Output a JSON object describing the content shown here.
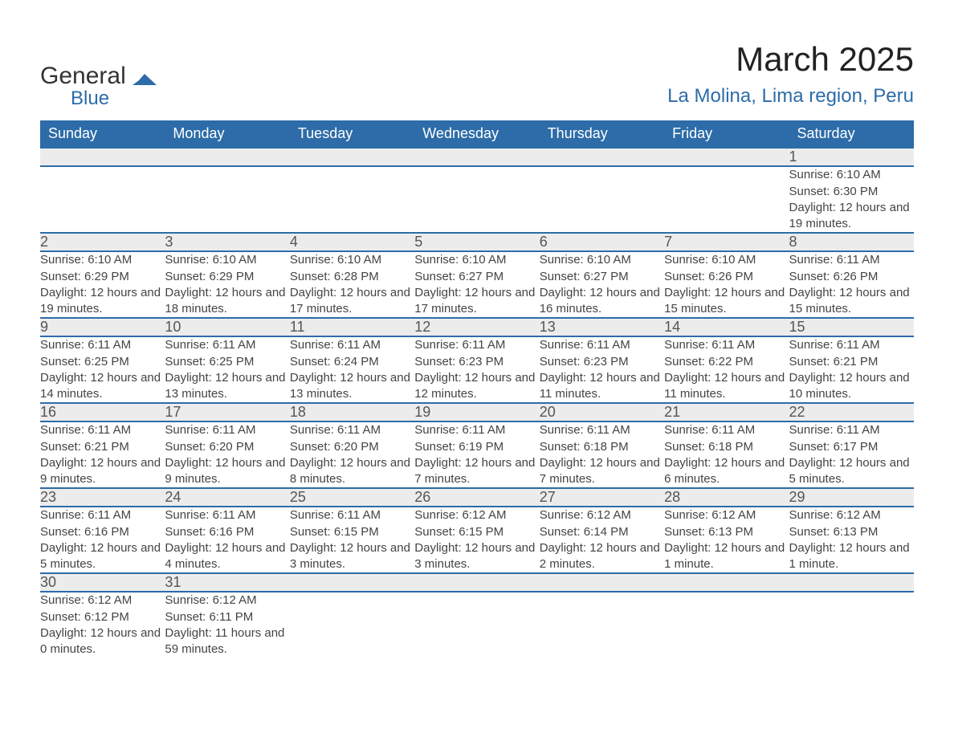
{
  "logo": {
    "word1": "General",
    "word2": "Blue",
    "accent_color": "#2d6ca8"
  },
  "title": "March 2025",
  "location": "La Molina, Lima region, Peru",
  "header_bg": "#2d6ca8",
  "header_fg": "#ffffff",
  "daynum_bg": "#ececec",
  "row_divider": "#2d6ca8",
  "text_color": "#444444",
  "weekdays": [
    "Sunday",
    "Monday",
    "Tuesday",
    "Wednesday",
    "Thursday",
    "Friday",
    "Saturday"
  ],
  "weeks": [
    [
      null,
      null,
      null,
      null,
      null,
      null,
      {
        "n": "1",
        "sr": "6:10 AM",
        "ss": "6:30 PM",
        "dl": "12 hours and 19 minutes."
      }
    ],
    [
      {
        "n": "2",
        "sr": "6:10 AM",
        "ss": "6:29 PM",
        "dl": "12 hours and 19 minutes."
      },
      {
        "n": "3",
        "sr": "6:10 AM",
        "ss": "6:29 PM",
        "dl": "12 hours and 18 minutes."
      },
      {
        "n": "4",
        "sr": "6:10 AM",
        "ss": "6:28 PM",
        "dl": "12 hours and 17 minutes."
      },
      {
        "n": "5",
        "sr": "6:10 AM",
        "ss": "6:27 PM",
        "dl": "12 hours and 17 minutes."
      },
      {
        "n": "6",
        "sr": "6:10 AM",
        "ss": "6:27 PM",
        "dl": "12 hours and 16 minutes."
      },
      {
        "n": "7",
        "sr": "6:10 AM",
        "ss": "6:26 PM",
        "dl": "12 hours and 15 minutes."
      },
      {
        "n": "8",
        "sr": "6:11 AM",
        "ss": "6:26 PM",
        "dl": "12 hours and 15 minutes."
      }
    ],
    [
      {
        "n": "9",
        "sr": "6:11 AM",
        "ss": "6:25 PM",
        "dl": "12 hours and 14 minutes."
      },
      {
        "n": "10",
        "sr": "6:11 AM",
        "ss": "6:25 PM",
        "dl": "12 hours and 13 minutes."
      },
      {
        "n": "11",
        "sr": "6:11 AM",
        "ss": "6:24 PM",
        "dl": "12 hours and 13 minutes."
      },
      {
        "n": "12",
        "sr": "6:11 AM",
        "ss": "6:23 PM",
        "dl": "12 hours and 12 minutes."
      },
      {
        "n": "13",
        "sr": "6:11 AM",
        "ss": "6:23 PM",
        "dl": "12 hours and 11 minutes."
      },
      {
        "n": "14",
        "sr": "6:11 AM",
        "ss": "6:22 PM",
        "dl": "12 hours and 11 minutes."
      },
      {
        "n": "15",
        "sr": "6:11 AM",
        "ss": "6:21 PM",
        "dl": "12 hours and 10 minutes."
      }
    ],
    [
      {
        "n": "16",
        "sr": "6:11 AM",
        "ss": "6:21 PM",
        "dl": "12 hours and 9 minutes."
      },
      {
        "n": "17",
        "sr": "6:11 AM",
        "ss": "6:20 PM",
        "dl": "12 hours and 9 minutes."
      },
      {
        "n": "18",
        "sr": "6:11 AM",
        "ss": "6:20 PM",
        "dl": "12 hours and 8 minutes."
      },
      {
        "n": "19",
        "sr": "6:11 AM",
        "ss": "6:19 PM",
        "dl": "12 hours and 7 minutes."
      },
      {
        "n": "20",
        "sr": "6:11 AM",
        "ss": "6:18 PM",
        "dl": "12 hours and 7 minutes."
      },
      {
        "n": "21",
        "sr": "6:11 AM",
        "ss": "6:18 PM",
        "dl": "12 hours and 6 minutes."
      },
      {
        "n": "22",
        "sr": "6:11 AM",
        "ss": "6:17 PM",
        "dl": "12 hours and 5 minutes."
      }
    ],
    [
      {
        "n": "23",
        "sr": "6:11 AM",
        "ss": "6:16 PM",
        "dl": "12 hours and 5 minutes."
      },
      {
        "n": "24",
        "sr": "6:11 AM",
        "ss": "6:16 PM",
        "dl": "12 hours and 4 minutes."
      },
      {
        "n": "25",
        "sr": "6:11 AM",
        "ss": "6:15 PM",
        "dl": "12 hours and 3 minutes."
      },
      {
        "n": "26",
        "sr": "6:12 AM",
        "ss": "6:15 PM",
        "dl": "12 hours and 3 minutes."
      },
      {
        "n": "27",
        "sr": "6:12 AM",
        "ss": "6:14 PM",
        "dl": "12 hours and 2 minutes."
      },
      {
        "n": "28",
        "sr": "6:12 AM",
        "ss": "6:13 PM",
        "dl": "12 hours and 1 minute."
      },
      {
        "n": "29",
        "sr": "6:12 AM",
        "ss": "6:13 PM",
        "dl": "12 hours and 1 minute."
      }
    ],
    [
      {
        "n": "30",
        "sr": "6:12 AM",
        "ss": "6:12 PM",
        "dl": "12 hours and 0 minutes."
      },
      {
        "n": "31",
        "sr": "6:12 AM",
        "ss": "6:11 PM",
        "dl": "11 hours and 59 minutes."
      },
      null,
      null,
      null,
      null,
      null
    ]
  ],
  "labels": {
    "sunrise": "Sunrise:",
    "sunset": "Sunset:",
    "daylight": "Daylight:"
  }
}
